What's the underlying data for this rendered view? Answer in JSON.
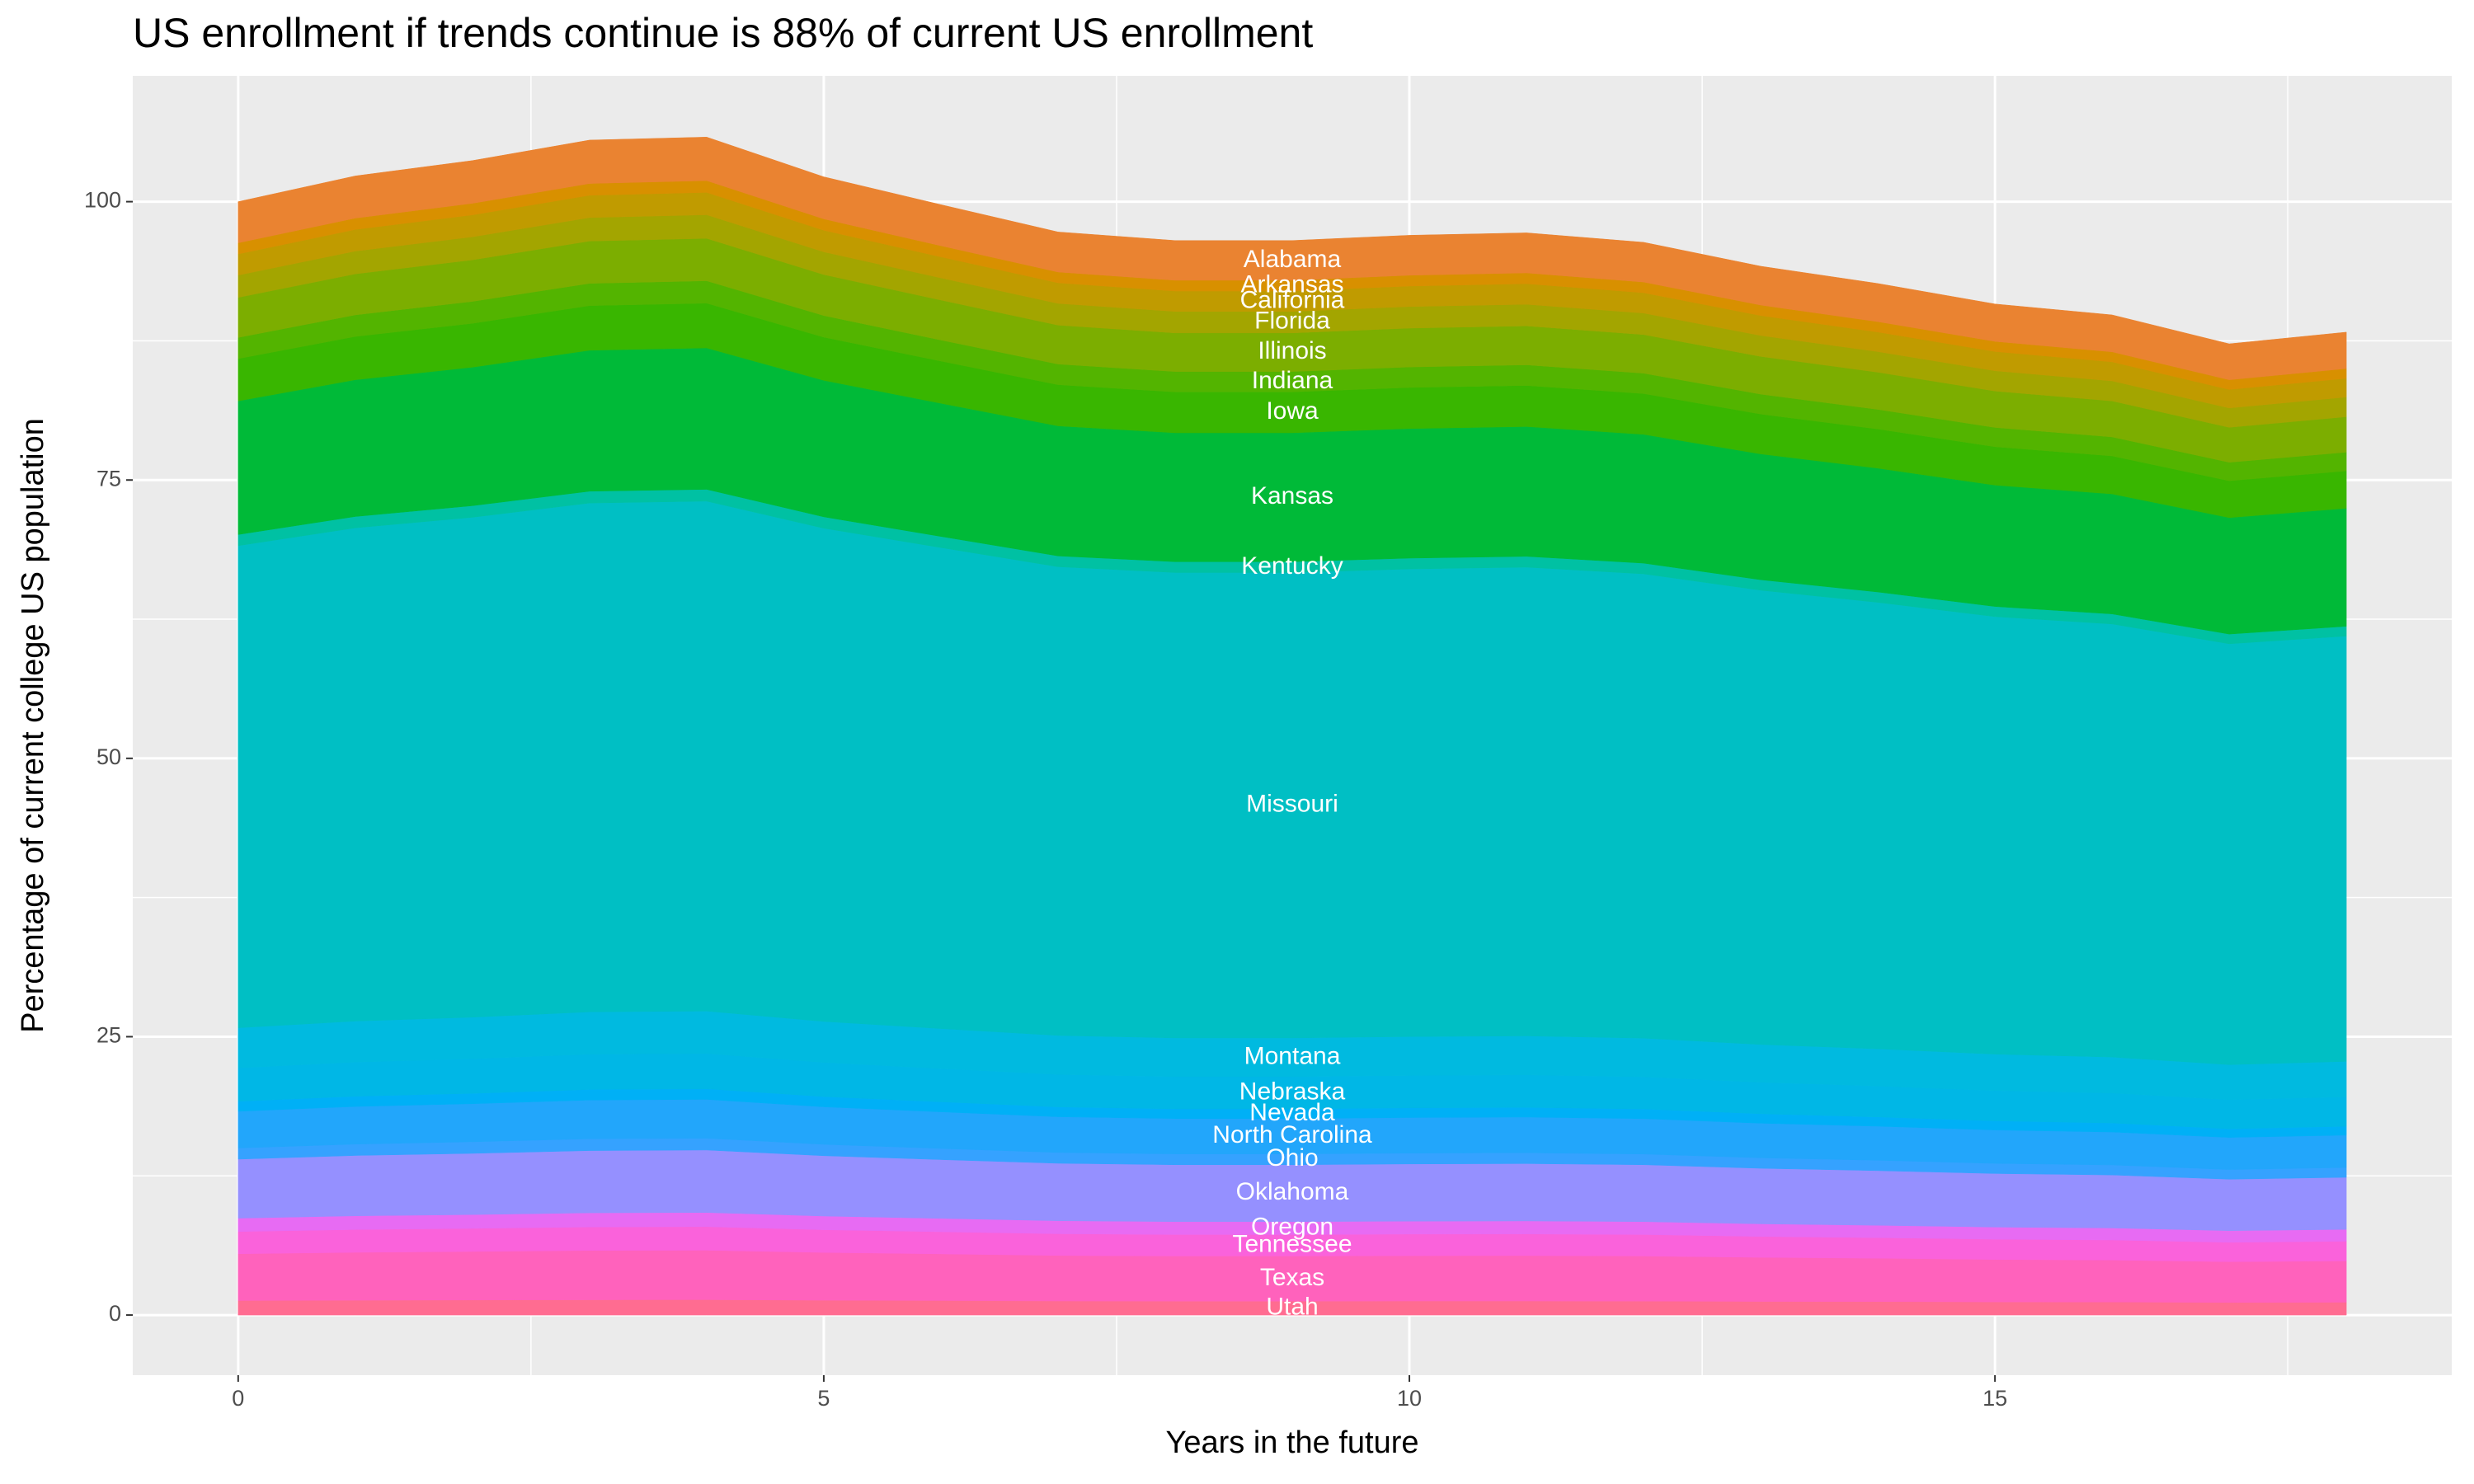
{
  "chart_data": {
    "type": "stacked-area",
    "title": "US enrollment if trends continue is 88% of current US enrollment",
    "x_label": "Years in the future",
    "y_label": "Percentage of current college US population",
    "x": [
      0,
      1,
      2,
      3,
      4,
      5,
      6,
      7,
      8,
      9,
      10,
      11,
      12,
      13,
      14,
      15,
      16,
      17,
      18
    ],
    "xlim": [
      -0.9,
      18.9
    ],
    "ylim": [
      -5.4,
      111.3
    ],
    "xticks": [
      0,
      5,
      10,
      15
    ],
    "yticks": [
      0,
      25,
      50,
      75,
      100
    ],
    "x_minor_grid": [
      2.5,
      7.5,
      12.5,
      17.5
    ],
    "y_minor_grid": [
      12.5,
      37.5,
      62.5,
      87.5
    ],
    "grid": true,
    "label_x": 9,
    "series": [
      {
        "name": "Utah",
        "color": "#FF6C91",
        "values": [
          1.3,
          1.33,
          1.35,
          1.37,
          1.38,
          1.33,
          1.3,
          1.26,
          1.25,
          1.25,
          1.26,
          1.26,
          1.25,
          1.22,
          1.21,
          1.18,
          1.17,
          1.13,
          1.15
        ]
      },
      {
        "name": "Texas",
        "color": "#FF62BC",
        "values": [
          4.2,
          4.3,
          4.36,
          4.43,
          4.44,
          4.29,
          4.19,
          4.09,
          4.05,
          4.05,
          4.07,
          4.08,
          4.05,
          3.96,
          3.89,
          3.81,
          3.77,
          3.66,
          3.71
        ]
      },
      {
        "name": "Tennessee",
        "color": "#FA62DB",
        "values": [
          2,
          2.05,
          2.07,
          2.11,
          2.12,
          2.04,
          1.99,
          1.95,
          1.93,
          1.93,
          1.94,
          1.94,
          1.93,
          1.88,
          1.85,
          1.82,
          1.8,
          1.74,
          1.77
        ]
      },
      {
        "name": "Oregon",
        "color": "#E76BF3",
        "values": [
          1.2,
          1.23,
          1.24,
          1.27,
          1.27,
          1.23,
          1.2,
          1.17,
          1.16,
          1.16,
          1.16,
          1.17,
          1.16,
          1.13,
          1.11,
          1.09,
          1.08,
          1.05,
          1.06
        ]
      },
      {
        "name": "Oklahoma",
        "color": "#9590FF",
        "values": [
          5.3,
          5.42,
          5.5,
          5.59,
          5.61,
          5.42,
          5.28,
          5.16,
          5.11,
          5.11,
          5.14,
          5.15,
          5.11,
          4.99,
          4.91,
          4.81,
          4.76,
          4.62,
          4.68
        ]
      },
      {
        "name": "Ohio",
        "color": "#35A2FF",
        "values": [
          1,
          1.02,
          1.04,
          1.06,
          1.06,
          1.02,
          1.0,
          0.97,
          0.97,
          0.97,
          0.97,
          0.97,
          0.96,
          0.94,
          0.93,
          0.91,
          0.9,
          0.87,
          0.88
        ]
      },
      {
        "name": "North Carolina",
        "color": "#22A6FB",
        "values": [
          3.3,
          3.38,
          3.42,
          3.48,
          3.49,
          3.37,
          3.29,
          3.21,
          3.18,
          3.18,
          3.2,
          3.21,
          3.18,
          3.11,
          3.06,
          3.0,
          2.96,
          2.88,
          2.91
        ]
      },
      {
        "name": "Nevada",
        "color": "#00B0F6",
        "values": [
          0.9,
          0.92,
          0.93,
          0.95,
          0.95,
          0.92,
          0.9,
          0.88,
          0.87,
          0.87,
          0.87,
          0.87,
          0.87,
          0.85,
          0.83,
          0.82,
          0.81,
          0.78,
          0.79
        ]
      },
      {
        "name": "Nebraska",
        "color": "#00B7E6",
        "values": [
          3,
          3.07,
          3.11,
          3.17,
          3.17,
          3.07,
          2.99,
          2.92,
          2.9,
          2.9,
          2.91,
          2.92,
          2.89,
          2.83,
          2.78,
          2.72,
          2.69,
          2.62,
          2.65
        ]
      },
      {
        "name": "Montana",
        "color": "#00BAE0",
        "values": [
          3.6,
          3.68,
          3.73,
          3.8,
          3.81,
          3.68,
          3.59,
          3.5,
          3.47,
          3.47,
          3.49,
          3.5,
          3.47,
          3.39,
          3.34,
          3.27,
          3.23,
          3.14,
          3.18
        ]
      },
      {
        "name": "Missouri",
        "color": "#00BFC4",
        "values": [
          43.3,
          44.3,
          44.9,
          45.7,
          45.8,
          44.3,
          43.2,
          42.1,
          41.8,
          41.8,
          42.0,
          42.1,
          41.7,
          40.8,
          40.1,
          39.3,
          38.9,
          37.8,
          38.2
        ]
      },
      {
        "name": "Kentucky",
        "color": "#00C1A3",
        "values": [
          1,
          1.02,
          1.04,
          1.06,
          1.06,
          1.02,
          1.0,
          0.97,
          0.97,
          0.97,
          0.97,
          0.97,
          0.96,
          0.94,
          0.93,
          0.91,
          0.9,
          0.87,
          0.88
        ]
      },
      {
        "name": "Kansas",
        "color": "#00BA38",
        "values": [
          12,
          12.28,
          12.44,
          12.66,
          12.7,
          12.26,
          11.96,
          11.68,
          11.58,
          11.58,
          11.64,
          11.66,
          11.57,
          11.3,
          11.12,
          10.9,
          10.78,
          10.46,
          10.6
        ]
      },
      {
        "name": "Iowa",
        "color": "#39B600",
        "values": [
          3.8,
          3.89,
          3.94,
          4.01,
          4.02,
          3.88,
          3.79,
          3.7,
          3.67,
          3.67,
          3.69,
          3.69,
          3.66,
          3.58,
          3.52,
          3.45,
          3.41,
          3.31,
          3.36
        ]
      },
      {
        "name": "Indiana",
        "color": "#53B400",
        "values": [
          1.9,
          1.94,
          1.97,
          2.0,
          2.01,
          1.94,
          1.89,
          1.85,
          1.83,
          1.83,
          1.84,
          1.85,
          1.83,
          1.79,
          1.76,
          1.73,
          1.71,
          1.66,
          1.68
        ]
      },
      {
        "name": "Illinois",
        "color": "#7CAE00",
        "values": [
          3.6,
          3.68,
          3.73,
          3.8,
          3.81,
          3.68,
          3.59,
          3.5,
          3.47,
          3.47,
          3.49,
          3.5,
          3.47,
          3.39,
          3.34,
          3.27,
          3.23,
          3.14,
          3.18
        ]
      },
      {
        "name": "Florida",
        "color": "#A3A500",
        "values": [
          2,
          2.05,
          2.07,
          2.11,
          2.12,
          2.04,
          1.99,
          1.95,
          1.93,
          1.93,
          1.94,
          1.94,
          1.93,
          1.88,
          1.85,
          1.82,
          1.8,
          1.74,
          1.77
        ]
      },
      {
        "name": "California",
        "color": "#C09B00",
        "values": [
          1.9,
          1.94,
          1.97,
          2.0,
          2.01,
          1.94,
          1.89,
          1.85,
          1.83,
          1.83,
          1.84,
          1.85,
          1.83,
          1.79,
          1.76,
          1.73,
          1.71,
          1.66,
          1.68
        ]
      },
      {
        "name": "Arkansas",
        "color": "#D89000",
        "values": [
          1,
          1.02,
          1.04,
          1.06,
          1.06,
          1.02,
          1.0,
          0.97,
          0.97,
          0.97,
          0.97,
          0.97,
          0.96,
          0.94,
          0.93,
          0.91,
          0.9,
          0.87,
          0.88
        ]
      },
      {
        "name": "Alabama",
        "color": "#EA8331",
        "values": [
          3.7,
          3.79,
          3.84,
          3.9,
          3.91,
          3.78,
          3.69,
          3.6,
          3.57,
          3.57,
          3.59,
          3.6,
          3.57,
          3.49,
          3.43,
          3.36,
          3.32,
          3.23,
          3.27
        ]
      }
    ]
  }
}
